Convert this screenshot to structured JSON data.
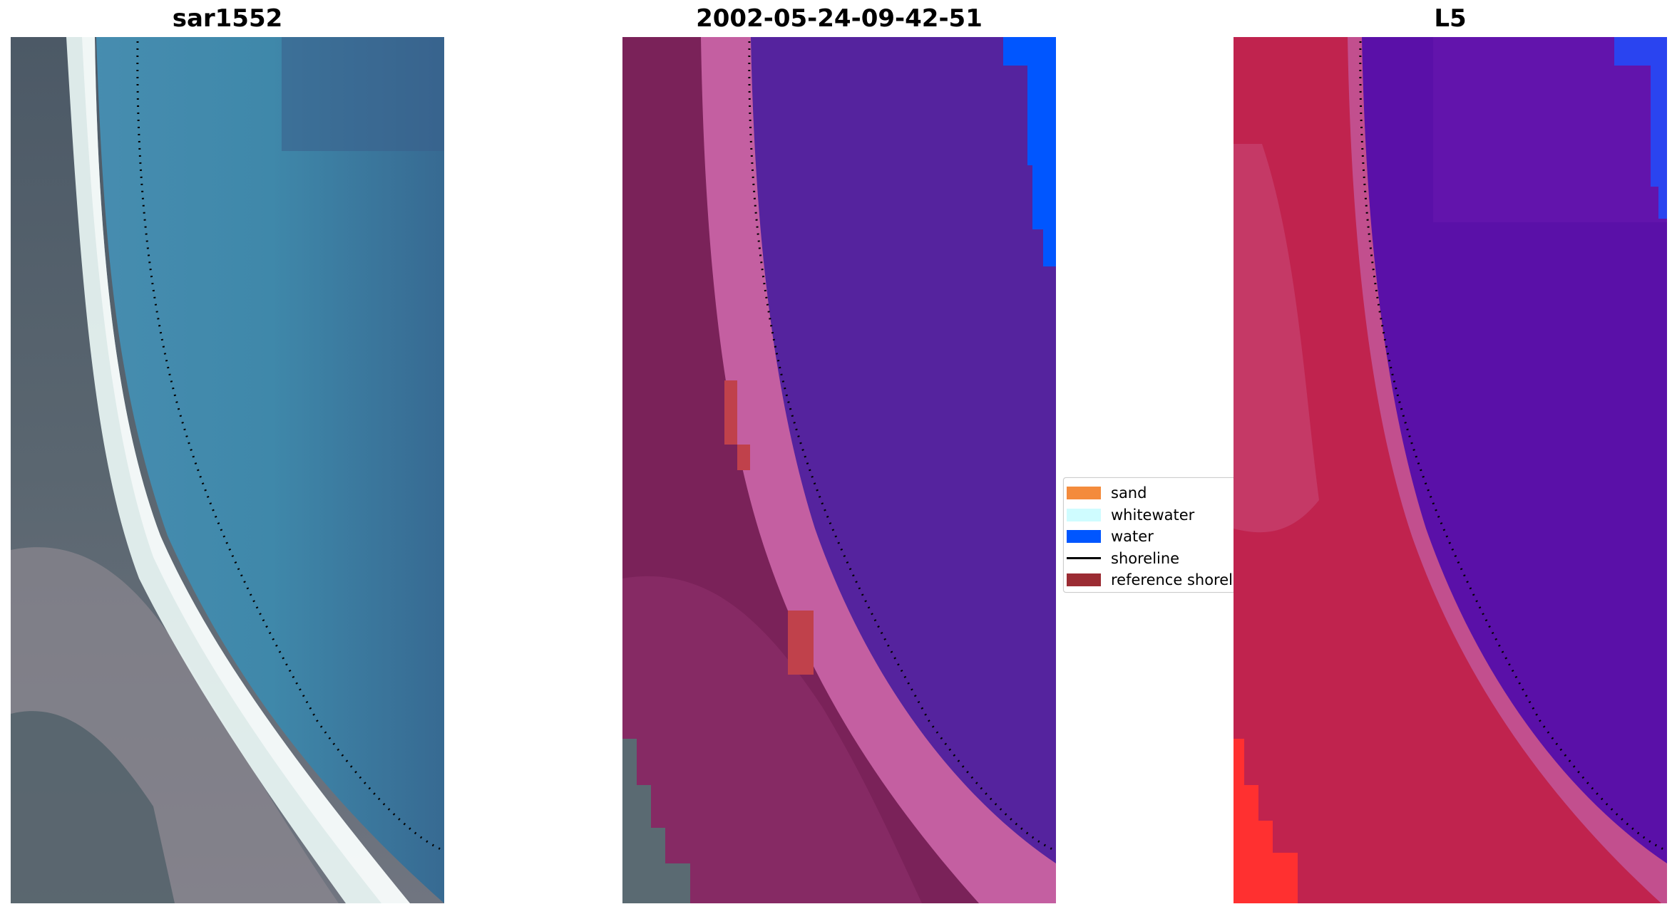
{
  "titles": {
    "left": "sar1552",
    "middle": "2002-05-24-09-42-51",
    "right": "L5"
  },
  "legend": {
    "items": [
      {
        "label": "sand",
        "color": "#f48b3c"
      },
      {
        "label": "whitewater",
        "color": "#cffcff"
      },
      {
        "label": "water",
        "color": "#0056ff"
      },
      {
        "label": "shoreline",
        "color": "#000000",
        "kind": "line"
      },
      {
        "label": "reference shoreline",
        "color": "#9b2c33"
      }
    ]
  },
  "colors": {
    "rgb_water": "#3e86a8",
    "rgb_land": "#5a6670",
    "rgb_beach": "#e9f6f4",
    "class_water": "#55239e",
    "class_land": "#7a2259",
    "class_beach": "#c45fa1",
    "index_water": "#5a10a8",
    "index_land": "#c0234e"
  }
}
